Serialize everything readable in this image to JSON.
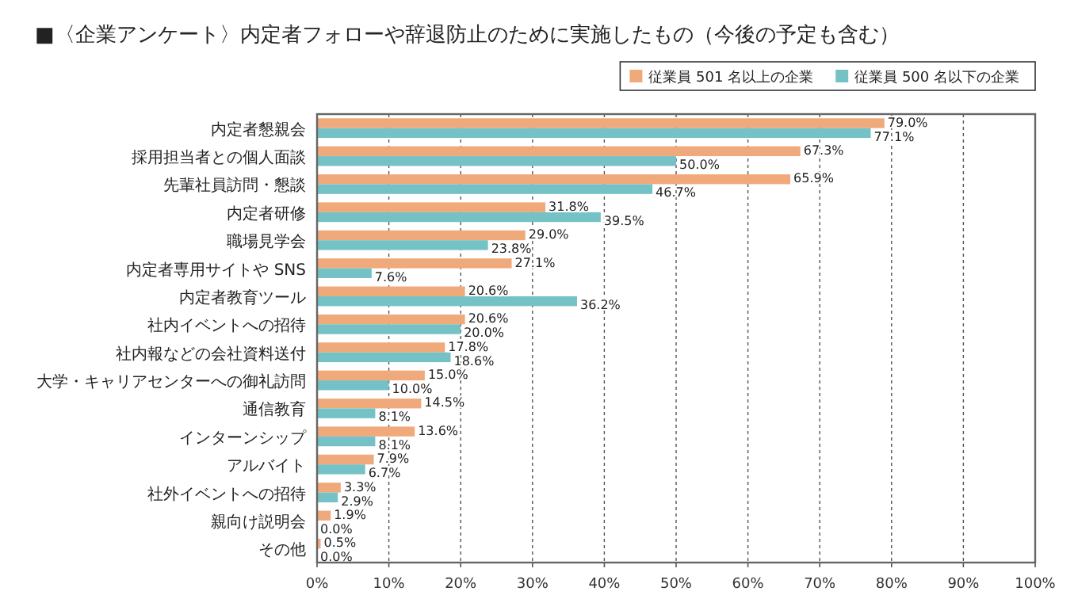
{
  "chart_data": {
    "type": "bar",
    "orientation": "horizontal",
    "title": "■〈企業アンケート〉内定者フォローや辞退防止のために実施したもの（今後の予定も含む）",
    "categories": [
      "内定者懇親会",
      "採用担当者との個人面談",
      "先輩社員訪問・懇談",
      "内定者研修",
      "職場見学会",
      "内定者専用サイトや SNS",
      "内定者教育ツール",
      "社内イベントへの招待",
      "社内報などの会社資料送付",
      "大学・キャリアセンターへの御礼訪問",
      "通信教育",
      "インターンシップ",
      "アルバイト",
      "社外イベントへの招待",
      "親向け説明会",
      "その他"
    ],
    "series": [
      {
        "name": "従業員 501 名以上の企業",
        "color": "#f0a97a",
        "values": [
          79.0,
          67.3,
          65.9,
          31.8,
          29.0,
          27.1,
          20.6,
          20.6,
          17.8,
          15.0,
          14.5,
          13.6,
          7.9,
          3.3,
          1.9,
          0.5
        ],
        "value_labels": [
          "79.0%",
          "67.3%",
          "65.9%",
          "31.8%",
          "29.0%",
          "27.1%",
          "20.6%",
          "20.6%",
          "17.8%",
          "15.0%",
          "14.5%",
          "13.6%",
          "7.9%",
          "3.3%",
          "1.9%",
          "0.5%"
        ]
      },
      {
        "name": "従業員 500 名以下の企業",
        "color": "#74c2c6",
        "values": [
          77.1,
          50.0,
          46.7,
          39.5,
          23.8,
          7.6,
          36.2,
          20.0,
          18.6,
          10.0,
          8.1,
          8.1,
          6.7,
          2.9,
          0.0,
          0.0
        ],
        "value_labels": [
          "77.1%",
          "50.0%",
          "46.7%",
          "39.5%",
          "23.8%",
          "7.6%",
          "36.2%",
          "20.0%",
          "18.6%",
          "10.0%",
          "8.1%",
          "8.1%",
          "6.7%",
          "2.9%",
          "0.0%",
          "0.0%"
        ]
      }
    ],
    "xlim": [
      0,
      100
    ],
    "xticks": [
      {
        "value": 0,
        "label": "0%"
      },
      {
        "value": 10,
        "label": "10%"
      },
      {
        "value": 20,
        "label": "20%"
      },
      {
        "value": 30,
        "label": "30%"
      },
      {
        "value": 40,
        "label": "40%"
      },
      {
        "value": 50,
        "label": "50%"
      },
      {
        "value": 60,
        "label": "60%"
      },
      {
        "value": 70,
        "label": "70%"
      },
      {
        "value": 80,
        "label": "80%"
      },
      {
        "value": 90,
        "label": "90%"
      },
      {
        "value": 100,
        "label": "100%"
      }
    ],
    "grid": "x",
    "legend": "top right"
  }
}
